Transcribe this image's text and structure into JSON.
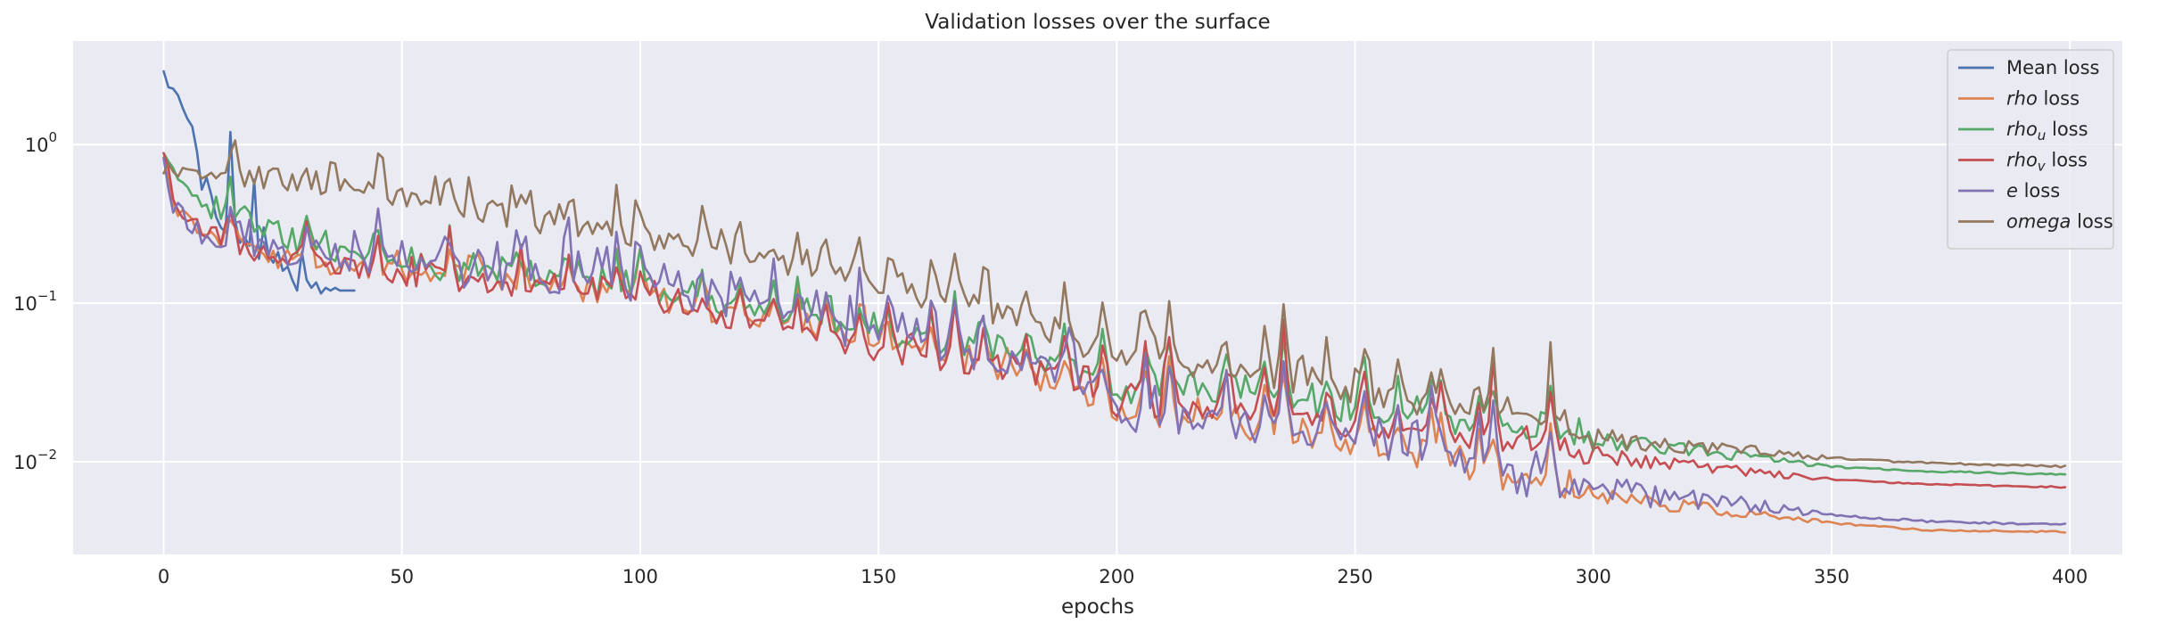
{
  "chart_data": {
    "type": "line",
    "title": "Validation losses over the surface",
    "xlabel": "epochs",
    "ylabel": "",
    "y_scale": "log",
    "xlim": [
      -19,
      411
    ],
    "ylim": [
      0.0026,
      4.5
    ],
    "grid": true,
    "legend_position": "top-right",
    "background": "#eaeaf2",
    "x_ticks": [
      0,
      50,
      100,
      150,
      200,
      250,
      300,
      350,
      400
    ],
    "x_tick_labels": [
      "0",
      "50",
      "100",
      "150",
      "200",
      "250",
      "300",
      "350",
      "400"
    ],
    "y_ticks": [
      0.01,
      0.1,
      1
    ],
    "y_tick_labels": [
      {
        "base": "10",
        "exp": "−2"
      },
      {
        "base": "10",
        "exp": "−1"
      },
      {
        "base": "10",
        "exp": "0"
      }
    ],
    "series": [
      {
        "name": "Mean loss",
        "legend_parts": [
          {
            "text": "Mean loss",
            "style": "normal"
          }
        ],
        "color": "#4c72b0",
        "x": [
          0,
          1,
          2,
          3,
          4,
          5,
          6,
          7,
          8,
          9,
          10,
          11,
          12,
          13,
          14,
          15,
          16,
          17,
          18,
          19,
          20,
          21,
          22,
          23,
          24,
          25,
          26,
          27,
          28,
          29,
          30,
          31,
          32,
          33,
          34,
          35,
          36,
          37,
          38,
          39,
          40
        ],
        "y": [
          2.9,
          2.3,
          2.25,
          2.05,
          1.7,
          1.45,
          1.3,
          0.9,
          0.52,
          0.62,
          0.48,
          0.35,
          0.3,
          0.28,
          1.2,
          0.33,
          0.24,
          0.26,
          0.23,
          0.6,
          0.19,
          0.3,
          0.2,
          0.18,
          0.21,
          0.16,
          0.17,
          0.14,
          0.12,
          0.21,
          0.14,
          0.125,
          0.135,
          0.115,
          0.125,
          0.12,
          0.125,
          0.12,
          0.12,
          0.12,
          0.12
        ]
      },
      {
        "name": "rho loss",
        "legend_parts": [
          {
            "text": "rho",
            "style": "italic"
          },
          {
            "text": " loss",
            "style": "normal"
          }
        ],
        "color": "#dd8452",
        "start": 0.9,
        "end": 0.0036,
        "amp": 0.15,
        "seed": 11,
        "knots": [
          [
            0,
            0.9
          ],
          [
            2,
            0.45
          ],
          [
            5,
            0.33
          ],
          [
            10,
            0.27
          ],
          [
            20,
            0.2
          ],
          [
            50,
            0.155
          ],
          [
            100,
            0.11
          ],
          [
            150,
            0.055
          ],
          [
            190,
            0.03
          ],
          [
            200,
            0.02
          ],
          [
            220,
            0.017
          ],
          [
            240,
            0.014
          ],
          [
            260,
            0.011
          ],
          [
            280,
            0.0075
          ],
          [
            300,
            0.0062
          ],
          [
            330,
            0.0048
          ],
          [
            350,
            0.0041
          ],
          [
            370,
            0.0037
          ],
          [
            400,
            0.0036
          ]
        ]
      },
      {
        "name": "rho_u loss",
        "legend_parts": [
          {
            "text": "rho",
            "style": "italic"
          },
          {
            "text": "u",
            "style": "sub-italic"
          },
          {
            "text": " loss",
            "style": "normal"
          }
        ],
        "color": "#55a868",
        "start": 0.95,
        "end": 0.0083,
        "amp": 0.14,
        "seed": 23,
        "knots": [
          [
            0,
            0.95
          ],
          [
            3,
            0.6
          ],
          [
            6,
            0.45
          ],
          [
            10,
            0.37
          ],
          [
            20,
            0.27
          ],
          [
            50,
            0.17
          ],
          [
            100,
            0.12
          ],
          [
            150,
            0.063
          ],
          [
            190,
            0.04
          ],
          [
            200,
            0.027
          ],
          [
            220,
            0.026
          ],
          [
            240,
            0.022
          ],
          [
            260,
            0.019
          ],
          [
            280,
            0.016
          ],
          [
            300,
            0.014
          ],
          [
            330,
            0.011
          ],
          [
            350,
            0.0093
          ],
          [
            370,
            0.0087
          ],
          [
            400,
            0.0083
          ]
        ]
      },
      {
        "name": "rho_v loss",
        "legend_parts": [
          {
            "text": "rho",
            "style": "italic"
          },
          {
            "text": "v",
            "style": "sub-italic"
          },
          {
            "text": " loss",
            "style": "normal"
          }
        ],
        "color": "#c44e52",
        "start": 0.95,
        "end": 0.0069,
        "amp": 0.14,
        "seed": 37,
        "knots": [
          [
            0,
            0.95
          ],
          [
            2,
            0.5
          ],
          [
            5,
            0.35
          ],
          [
            10,
            0.28
          ],
          [
            20,
            0.21
          ],
          [
            50,
            0.15
          ],
          [
            100,
            0.105
          ],
          [
            150,
            0.05
          ],
          [
            190,
            0.033
          ],
          [
            200,
            0.022
          ],
          [
            220,
            0.021
          ],
          [
            240,
            0.018
          ],
          [
            260,
            0.015
          ],
          [
            280,
            0.013
          ],
          [
            300,
            0.011
          ],
          [
            330,
            0.0088
          ],
          [
            350,
            0.0077
          ],
          [
            370,
            0.0072
          ],
          [
            400,
            0.0069
          ]
        ]
      },
      {
        "name": "e loss",
        "legend_parts": [
          {
            "text": "e",
            "style": "italic"
          },
          {
            "text": " loss",
            "style": "normal"
          }
        ],
        "color": "#8172b3",
        "start": 0.92,
        "end": 0.004,
        "amp": 0.22,
        "seed": 53,
        "knots": [
          [
            0,
            0.92
          ],
          [
            2,
            0.45
          ],
          [
            5,
            0.33
          ],
          [
            10,
            0.28
          ],
          [
            20,
            0.22
          ],
          [
            50,
            0.17
          ],
          [
            100,
            0.13
          ],
          [
            150,
            0.06
          ],
          [
            190,
            0.035
          ],
          [
            200,
            0.02
          ],
          [
            220,
            0.018
          ],
          [
            240,
            0.015
          ],
          [
            260,
            0.012
          ],
          [
            280,
            0.008
          ],
          [
            300,
            0.0068
          ],
          [
            330,
            0.0055
          ],
          [
            350,
            0.0046
          ],
          [
            370,
            0.0042
          ],
          [
            400,
            0.004
          ]
        ]
      },
      {
        "name": "omega loss",
        "legend_parts": [
          {
            "text": "omega",
            "style": "italic"
          },
          {
            "text": " loss",
            "style": "normal"
          }
        ],
        "color": "#937860",
        "start": 0.72,
        "end": 0.0093,
        "amp": 0.18,
        "seed": 71,
        "knots": [
          [
            0,
            0.72
          ],
          [
            5,
            0.65
          ],
          [
            20,
            0.62
          ],
          [
            40,
            0.55
          ],
          [
            50,
            0.47
          ],
          [
            70,
            0.38
          ],
          [
            90,
            0.29
          ],
          [
            100,
            0.27
          ],
          [
            120,
            0.2
          ],
          [
            150,
            0.12
          ],
          [
            170,
            0.1
          ],
          [
            190,
            0.06
          ],
          [
            200,
            0.045
          ],
          [
            220,
            0.037
          ],
          [
            240,
            0.03
          ],
          [
            260,
            0.025
          ],
          [
            280,
            0.019
          ],
          [
            300,
            0.014
          ],
          [
            330,
            0.012
          ],
          [
            350,
            0.0105
          ],
          [
            370,
            0.0098
          ],
          [
            400,
            0.0093
          ]
        ]
      }
    ],
    "spikes": [
      [
        14,
        0.5
      ],
      [
        30,
        0.4
      ],
      [
        45,
        0.45
      ],
      [
        60,
        0.5
      ],
      [
        75,
        0.5
      ],
      [
        85,
        0.5
      ],
      [
        95,
        0.55
      ],
      [
        100,
        0.6
      ],
      [
        113,
        0.5
      ],
      [
        121,
        0.55
      ],
      [
        128,
        0.6
      ],
      [
        133,
        0.6
      ],
      [
        139,
        0.6
      ],
      [
        146,
        0.65
      ],
      [
        152,
        0.7
      ],
      [
        161,
        0.6
      ],
      [
        166,
        0.95
      ],
      [
        172,
        0.75
      ],
      [
        181,
        0.65
      ],
      [
        189,
        0.8
      ],
      [
        197,
        1.1
      ],
      [
        206,
        1.3
      ],
      [
        211,
        1.7
      ],
      [
        223,
        0.9
      ],
      [
        231,
        0.85
      ],
      [
        235,
        1.6
      ],
      [
        244,
        0.7
      ],
      [
        252,
        1.2
      ],
      [
        259,
        0.6
      ],
      [
        266,
        0.8
      ],
      [
        268,
        1.0
      ],
      [
        276,
        0.65
      ],
      [
        279,
        1.2
      ],
      [
        291,
        1.1
      ]
    ]
  }
}
